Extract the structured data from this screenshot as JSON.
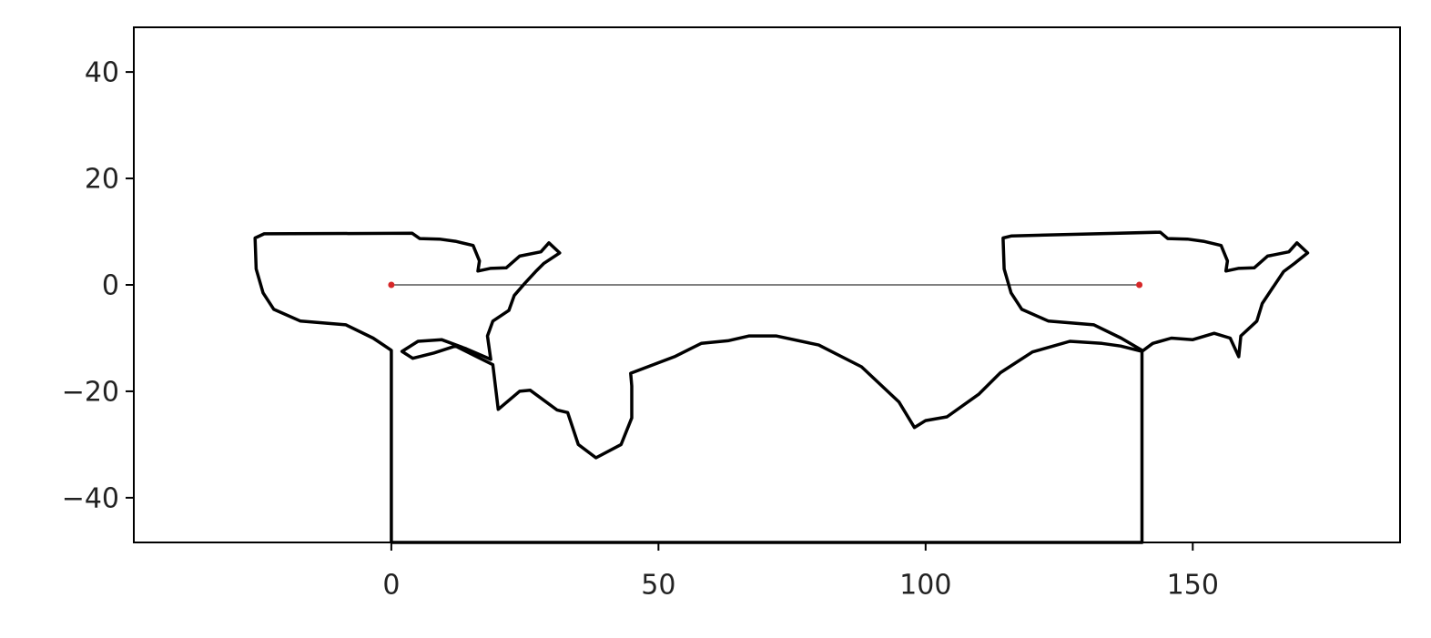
{
  "chart_data": {
    "type": "line",
    "xlim": [
      -48.2,
      188.8
    ],
    "ylim": [
      -48.4,
      48.4
    ],
    "xticks": [
      0,
      50,
      100,
      150
    ],
    "yticks": [
      {
        "value": -40,
        "label": "−40"
      },
      {
        "value": -20,
        "label": "−20"
      },
      0,
      20,
      40
    ],
    "series": [
      {
        "color": "#000000",
        "line_width": 3.5,
        "x": [
          0,
          0,
          -3.4,
          -8.5,
          -17,
          -22,
          -24,
          -25.3,
          -25.5,
          -23.8,
          3.9,
          5.3,
          9,
          12,
          15.3,
          16.5,
          16.2,
          18.5,
          21.5,
          24,
          28,
          29.5,
          31.5,
          28.5,
          27,
          25,
          23,
          22,
          19,
          18,
          18.6,
          14,
          9.4,
          5,
          2,
          4,
          8,
          12,
          16,
          19,
          20,
          24,
          26,
          31,
          33,
          35,
          38.3,
          43,
          45,
          45,
          44.8,
          53,
          58,
          63,
          67,
          72,
          80,
          88,
          95,
          97.9,
          100,
          104,
          110,
          114,
          120,
          127,
          133,
          136.5,
          140.5,
          142.5,
          146,
          150,
          154,
          157,
          158.6,
          159,
          162,
          163,
          165,
          167,
          169,
          171.5,
          169.5,
          168,
          164,
          161.5,
          158.5,
          156.2,
          156.5,
          155.3,
          152,
          149,
          145.3,
          143.9,
          116.1,
          114.5,
          114.7,
          116,
          118,
          123,
          131.5,
          136.6,
          140.5,
          140.5,
          0
        ],
        "values": [
          -48.4,
          -12.3,
          -10,
          -7.5,
          -6.8,
          -4.6,
          -1.5,
          3,
          8.8,
          9.6,
          9.7,
          8.7,
          8.6,
          8.2,
          7.4,
          4.5,
          2.6,
          3.1,
          3.2,
          5.4,
          6.2,
          7.9,
          6,
          4,
          2.5,
          0.3,
          -2,
          -4.8,
          -6.8,
          -9.6,
          -14,
          -12,
          -10.3,
          -10.6,
          -12.5,
          -13.8,
          -12.8,
          -11.5,
          -13.5,
          -15,
          -23.4,
          -20,
          -19.8,
          -23.5,
          -24,
          -30,
          -32.5,
          -30,
          -25,
          -19,
          -16.6,
          -13.5,
          -11,
          -10.5,
          -9.6,
          -9.6,
          -11.3,
          -15.4,
          -22,
          -26.8,
          -25.5,
          -24.8,
          -20.5,
          -16.5,
          -12.6,
          -10.6,
          -11,
          -11.5,
          -12.5,
          -11,
          -10,
          -10.3,
          -9.1,
          -10,
          -13.5,
          -9.6,
          -6.8,
          -3.5,
          -0.5,
          2.5,
          4,
          6,
          7.9,
          6.2,
          5.4,
          3.2,
          3.1,
          2.6,
          4.5,
          7.4,
          8.2,
          8.6,
          8.7,
          9.9,
          9.2,
          8.8,
          3,
          -1.5,
          -4.6,
          -6.8,
          -7.5,
          -10,
          -12.3,
          -48.4,
          -48.4
        ]
      },
      {
        "color": "#000000",
        "line_width": 1,
        "marker_color": "#d62728",
        "x": [
          0,
          140
        ],
        "values": [
          0,
          0
        ]
      }
    ]
  }
}
